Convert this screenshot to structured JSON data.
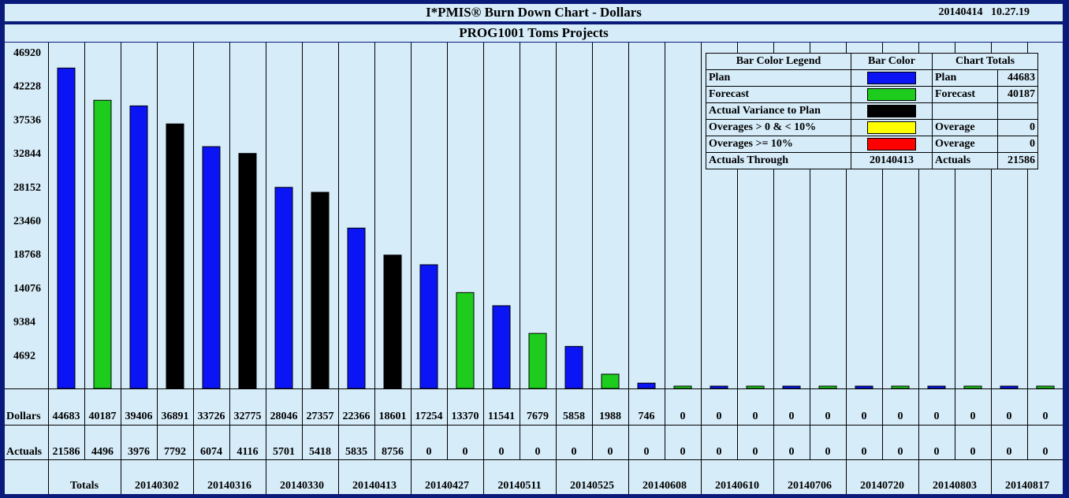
{
  "header": {
    "title": "I*PMIS® Burn Down Chart - Dollars",
    "date": "20140414",
    "time": "10.27.19",
    "subtitle": "PROG1001 Toms Projects"
  },
  "colors": {
    "plan": "#0a14f5",
    "forecast": "#1dcc1d",
    "actual": "#000000",
    "over_small": "#ffff00",
    "over_large": "#ff0000",
    "background": "#d6ecf9",
    "border": "#0a1a7a"
  },
  "legend": {
    "col1_header": "Bar Color Legend",
    "col2_header": "Bar Color",
    "col3_header": "Chart Totals",
    "rows": [
      {
        "label": "Plan",
        "color": "#0a14f5",
        "total_label": "Plan",
        "total_value": "44683"
      },
      {
        "label": "Forecast",
        "color": "#1dcc1d",
        "total_label": "Forecast",
        "total_value": "40187"
      },
      {
        "label": "Actual Variance to Plan",
        "color": "#000000",
        "total_label": "",
        "total_value": ""
      },
      {
        "label": "Overages > 0 & < 10%",
        "color": "#ffff00",
        "total_label": "Overage",
        "total_value": "0"
      },
      {
        "label": "Overages >= 10%",
        "color": "#ff0000",
        "total_label": "Overage",
        "total_value": "0"
      }
    ],
    "through_label": "Actuals Through",
    "through_value": "20140413",
    "actuals_label": "Actuals",
    "actuals_value": "21586"
  },
  "chart_data": {
    "type": "bar",
    "y_ticks": [
      46920,
      42228,
      37536,
      32844,
      28152,
      23460,
      18768,
      14076,
      9384,
      4692
    ],
    "ylim": [
      0,
      46920
    ],
    "row_labels": {
      "dollars": "Dollars",
      "actuals": "Actuals",
      "totals": "Totals"
    },
    "bars": [
      {
        "value": 44683,
        "kind": "plan"
      },
      {
        "value": 40187,
        "kind": "forecast"
      },
      {
        "value": 39406,
        "kind": "plan"
      },
      {
        "value": 36891,
        "kind": "actual"
      },
      {
        "value": 33726,
        "kind": "plan"
      },
      {
        "value": 32775,
        "kind": "actual"
      },
      {
        "value": 28046,
        "kind": "plan"
      },
      {
        "value": 27357,
        "kind": "actual"
      },
      {
        "value": 22366,
        "kind": "plan"
      },
      {
        "value": 18601,
        "kind": "actual"
      },
      {
        "value": 17254,
        "kind": "plan"
      },
      {
        "value": 13370,
        "kind": "forecast"
      },
      {
        "value": 11541,
        "kind": "plan"
      },
      {
        "value": 7679,
        "kind": "forecast"
      },
      {
        "value": 5858,
        "kind": "plan"
      },
      {
        "value": 1988,
        "kind": "forecast"
      },
      {
        "value": 746,
        "kind": "plan"
      },
      {
        "value": 0,
        "kind": "forecast"
      },
      {
        "value": 0,
        "kind": "plan"
      },
      {
        "value": 0,
        "kind": "forecast"
      },
      {
        "value": 0,
        "kind": "plan"
      },
      {
        "value": 0,
        "kind": "forecast"
      },
      {
        "value": 0,
        "kind": "plan"
      },
      {
        "value": 0,
        "kind": "forecast"
      },
      {
        "value": 0,
        "kind": "plan"
      },
      {
        "value": 0,
        "kind": "forecast"
      },
      {
        "value": 0,
        "kind": "plan"
      },
      {
        "value": 0,
        "kind": "forecast"
      }
    ],
    "dollars": [
      "44683",
      "40187",
      "39406",
      "36891",
      "33726",
      "32775",
      "28046",
      "27357",
      "22366",
      "18601",
      "17254",
      "13370",
      "11541",
      "7679",
      "5858",
      "1988",
      "746",
      "0",
      "0",
      "0",
      "0",
      "0",
      "0",
      "0",
      "0",
      "0",
      "0",
      "0"
    ],
    "actuals": [
      "21586",
      "4496",
      "3976",
      "7792",
      "6074",
      "4116",
      "5701",
      "5418",
      "5835",
      "8756",
      "0",
      "0",
      "0",
      "0",
      "0",
      "0",
      "0",
      "0",
      "0",
      "0",
      "0",
      "0",
      "0",
      "0",
      "0",
      "0",
      "0",
      "0"
    ],
    "periods": [
      "Totals",
      "20140302",
      "20140316",
      "20140330",
      "20140413",
      "20140427",
      "20140511",
      "20140525",
      "20140608",
      "20140610",
      "20140706",
      "20140720",
      "20140803",
      "20140817"
    ]
  }
}
